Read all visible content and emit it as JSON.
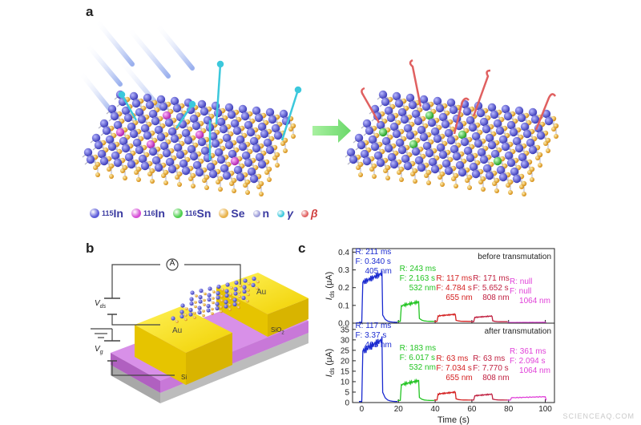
{
  "panels": {
    "a": "a",
    "b": "b",
    "c": "c"
  },
  "legend": [
    {
      "mass": "115",
      "element": "In",
      "color": "#5a5ad8"
    },
    {
      "mass": "116",
      "element": "In",
      "color": "#d64ed6"
    },
    {
      "mass": "116",
      "element": "Sn",
      "color": "#4fd04f"
    },
    {
      "mass": "",
      "element": "Se",
      "color": "#e8b24a"
    },
    {
      "mass": "",
      "element": "n",
      "color": "#9a9ad8"
    },
    {
      "mass": "",
      "element": "γ",
      "color": "#3cc8dc"
    },
    {
      "mass": "",
      "element": "β",
      "color": "#e06060"
    }
  ],
  "device": {
    "vds": "V",
    "vds_sub": "ds",
    "vg": "V",
    "vg_sub": "g",
    "ammeter": "A",
    "electrode_left": "Au",
    "electrode_right": "Au",
    "oxide": "SiO",
    "oxide_sub": "2",
    "substrate": "Si"
  },
  "chart_data": {
    "type": "line",
    "xlabel": "Time (s)",
    "ylabel": "I",
    "ylabel_sub": "ds",
    "ylabel_unit": "(μA)",
    "x_ticks": [
      0,
      20,
      40,
      60,
      80,
      100
    ],
    "xlim": [
      -5,
      105
    ],
    "panels": [
      {
        "label": "before transmutation",
        "ylim": [
          0,
          0.42
        ],
        "y_ticks": [
          "0.0",
          "0.1",
          "0.2",
          "0.3",
          "0.4"
        ],
        "y_tick_values": [
          0,
          0.1,
          0.2,
          0.3,
          0.4
        ],
        "pulses": [
          {
            "wavelength": "405 nm",
            "rise": "R: 211 ms",
            "fall": "F: 0.340 s",
            "start": 0,
            "end": 11,
            "peak": 0.28,
            "base": 0.005,
            "color": "#1a2ad0"
          },
          {
            "wavelength": "532 nm",
            "rise": "R: 243 ms",
            "fall": "F: 2.163 s",
            "start": 21,
            "end": 31,
            "peak": 0.12,
            "base": 0.01,
            "color": "#22c422"
          },
          {
            "wavelength": "655 nm",
            "rise": "R: 117 ms",
            "fall": "F: 4.784 s",
            "start": 41,
            "end": 51,
            "peak": 0.05,
            "base": 0.01,
            "color": "#d42020"
          },
          {
            "wavelength": "808 nm",
            "rise": "R: 171 ms",
            "fall": "F: 5.652 s",
            "start": 61,
            "end": 71,
            "peak": 0.04,
            "base": 0.008,
            "color": "#c02040"
          },
          {
            "wavelength": "1064 nm",
            "rise": "R: null",
            "fall": "F: null",
            "start": 81,
            "end": 100,
            "peak": 0.005,
            "base": 0.004,
            "color": "#e040d8"
          }
        ]
      },
      {
        "label": "after transmutation",
        "ylim": [
          0,
          38
        ],
        "y_ticks": [
          "0",
          "5",
          "10",
          "15",
          "20",
          "25",
          "30",
          "35"
        ],
        "y_tick_values": [
          0,
          5,
          10,
          15,
          20,
          25,
          30,
          35
        ],
        "pulses": [
          {
            "wavelength": "405 nm",
            "rise": "R: 117 ms",
            "fall": "F: 3.37 s",
            "start": 0,
            "end": 11,
            "peak": 30,
            "base": 0.5,
            "color": "#1a2ad0"
          },
          {
            "wavelength": "532 nm",
            "rise": "R: 183 ms",
            "fall": "F: 6.017 s",
            "start": 21,
            "end": 31,
            "peak": 10.5,
            "base": 1,
            "color": "#22c422"
          },
          {
            "wavelength": "655 nm",
            "rise": "R: 63 ms",
            "fall": "F: 7.034 s",
            "start": 41,
            "end": 51,
            "peak": 5,
            "base": 1.2,
            "color": "#d42020"
          },
          {
            "wavelength": "808 nm",
            "rise": "R: 63 ms",
            "fall": "F: 7.770 s",
            "start": 61,
            "end": 71,
            "peak": 4,
            "base": 1.2,
            "color": "#c02040"
          },
          {
            "wavelength": "1064 nm",
            "rise": "R: 361 ms",
            "fall": "F: 2.094 s",
            "start": 81,
            "end": 100,
            "peak": 2.8,
            "base": 1.2,
            "color": "#e040d8"
          }
        ]
      }
    ]
  },
  "watermark": "SCIENCEAQ.COM"
}
